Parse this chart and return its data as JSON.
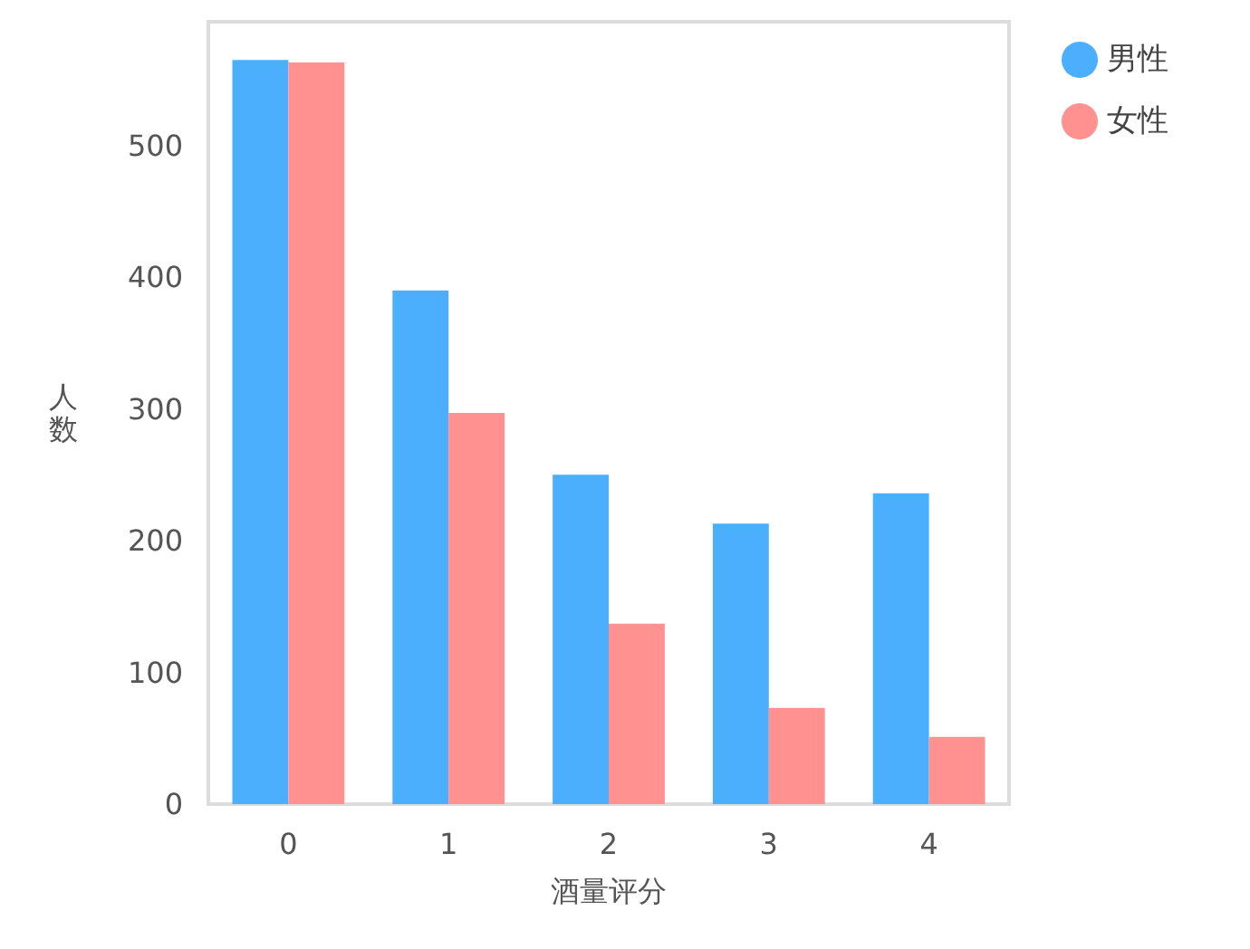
{
  "chart_data": {
    "type": "bar",
    "xlabel": "酒量评分",
    "ylabel": "人数",
    "categories": [
      "0",
      "1",
      "2",
      "3",
      "4"
    ],
    "series": [
      {
        "name": "男性",
        "color": "#4baffe",
        "values": [
          565,
          390,
          250,
          213,
          236
        ]
      },
      {
        "name": "女性",
        "color": "#ff9190",
        "values": [
          563,
          297,
          137,
          73,
          51
        ]
      }
    ],
    "ylim": [
      0,
      594
    ],
    "yticks": [
      0,
      100,
      200,
      300,
      400,
      500
    ],
    "grid": false,
    "legend": "top right"
  }
}
